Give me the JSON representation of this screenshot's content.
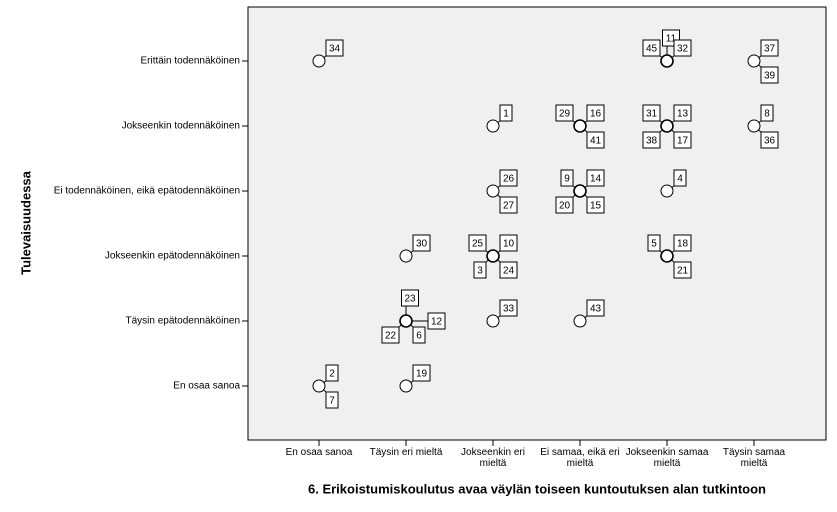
{
  "chart_data": {
    "type": "scatter",
    "x_label": "6. Erikoistumiskoulutus avaa väylän toiseen kuntoutuksen alan tutkintoon",
    "y_label": "Tulevaisuudessa",
    "x_categories": [
      "En osaa sanoa",
      "Täysin eri mieltä",
      "Jokseenkin eri\nmieltä",
      "Ei samaa, eikä eri\nmieltä",
      "Jokseenkin samaa\nmieltä",
      "Täysin samaa\nmieltä"
    ],
    "y_categories": [
      "En osaa sanoa",
      "Täysin epätodennäköinen",
      "Jokseenkin epätodennäköinen",
      "Ei todennäköinen, eikä epätodennäköinen",
      "Jokseenkin todennäköinen",
      "Erittäin todennäköinen"
    ],
    "points": [
      {
        "x": 0,
        "y": 5,
        "ids": [
          34
        ]
      },
      {
        "x": 4,
        "y": 5,
        "ids": [
          45,
          11,
          32
        ]
      },
      {
        "x": 5,
        "y": 5,
        "ids": [
          37,
          39
        ]
      },
      {
        "x": 2,
        "y": 4,
        "ids": [
          1
        ]
      },
      {
        "x": 3,
        "y": 4,
        "ids": [
          29,
          16,
          41
        ]
      },
      {
        "x": 4,
        "y": 4,
        "ids": [
          31,
          13,
          38,
          17
        ]
      },
      {
        "x": 5,
        "y": 4,
        "ids": [
          8,
          36
        ]
      },
      {
        "x": 2,
        "y": 3,
        "ids": [
          26,
          27
        ]
      },
      {
        "x": 3,
        "y": 3,
        "ids": [
          9,
          14,
          20,
          15
        ]
      },
      {
        "x": 4,
        "y": 3,
        "ids": [
          4
        ]
      },
      {
        "x": 1,
        "y": 2,
        "ids": [
          30
        ]
      },
      {
        "x": 2,
        "y": 2,
        "ids": [
          25,
          10,
          3,
          24
        ]
      },
      {
        "x": 4,
        "y": 2,
        "ids": [
          5,
          18,
          21
        ]
      },
      {
        "x": 1,
        "y": 1,
        "ids": [
          23,
          12,
          22,
          6
        ]
      },
      {
        "x": 2,
        "y": 1,
        "ids": [
          33
        ]
      },
      {
        "x": 3,
        "y": 1,
        "ids": [
          43
        ]
      },
      {
        "x": 0,
        "y": 0,
        "ids": [
          2,
          7
        ]
      },
      {
        "x": 1,
        "y": 0,
        "ids": [
          19
        ]
      }
    ]
  }
}
